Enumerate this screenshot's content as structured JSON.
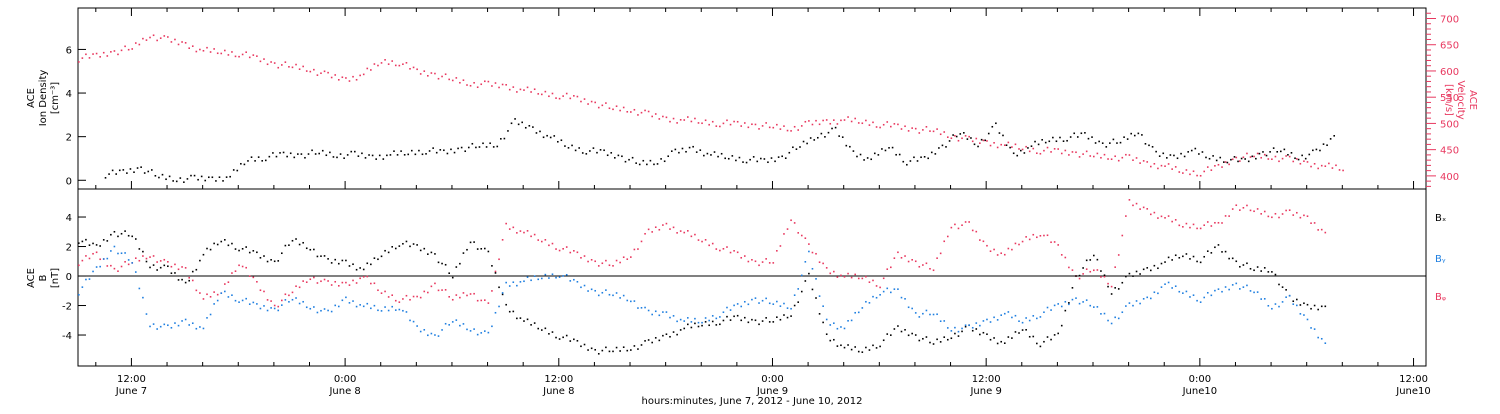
{
  "colors": {
    "density": "#000000",
    "velocity": "#e8385f",
    "bx": "#000000",
    "by": "#1f7fe0",
    "bz": "#e8385f",
    "axis": "#000000"
  },
  "chart_data": [
    {
      "type": "scatter",
      "panel": "top",
      "x_range_hours": [
        -3,
        72.7
      ],
      "bottom_title": "hours:minutes, June  7, 2012 - June 10, 2012",
      "x_ticks": [
        {
          "hour": 0,
          "time": "12:00",
          "day": "June 7"
        },
        {
          "hour": 12,
          "time": "0:00",
          "day": "June 8"
        },
        {
          "hour": 24,
          "time": "12:00",
          "day": "June 8"
        },
        {
          "hour": 36,
          "time": "0:00",
          "day": "June 9"
        },
        {
          "hour": 48,
          "time": "12:00",
          "day": "June 9"
        },
        {
          "hour": 60,
          "time": "0:00",
          "day": "June10"
        },
        {
          "hour": 72,
          "time": "12:00",
          "day": "June10"
        }
      ],
      "left_axis": {
        "label_line1": "ACE",
        "label_line2": "Ion Density",
        "label_units": "[cm⁻³]",
        "ylim": [
          -0.4,
          7.9
        ],
        "ticks": [
          0,
          2,
          4,
          6
        ]
      },
      "right_axis": {
        "label_line1": "ACE",
        "label_line2": "Velocity",
        "label_units": "[km/s]",
        "ylim": [
          375,
          720
        ],
        "ticks": [
          400,
          450,
          500,
          550,
          600,
          650,
          700
        ]
      },
      "series": [
        {
          "key": "density",
          "axis": "left",
          "x": [
            -1.5,
            -0.5,
            0.5,
            1.5,
            2.5,
            3.5,
            4.5,
            5.5,
            6.5,
            7.5,
            8.5,
            9.5,
            10.5,
            11.5,
            12.5,
            13.5,
            14.5,
            15.5,
            16.5,
            17.5,
            18.5,
            19.5,
            20.5,
            21.5,
            22.5,
            23.5,
            24.5,
            25.5,
            26.5,
            27.5,
            28.5,
            29.5,
            30.5,
            31.5,
            32.5,
            33.5,
            34.5,
            35.5,
            36.5,
            37.5,
            38.5,
            39.5,
            40.5,
            41.5,
            42.5,
            43.5,
            44.5,
            45.5,
            46.5,
            47.5,
            48.5,
            49.5,
            50.5,
            51.5,
            52.5,
            53.5,
            54.5,
            55.5,
            56.5,
            57.5,
            58.5,
            59.5,
            60.5,
            61.5,
            62.5,
            63.5,
            64.5,
            65.5,
            66.5,
            67.5
          ],
          "y": [
            0.3,
            0.4,
            0.6,
            0.2,
            0.1,
            0.1,
            0.1,
            0.2,
            1.0,
            1.1,
            1.2,
            1.2,
            1.3,
            1.2,
            1.2,
            1.1,
            1.2,
            1.3,
            1.4,
            1.3,
            1.5,
            1.6,
            1.7,
            2.7,
            2.4,
            2.0,
            1.6,
            1.4,
            1.3,
            1.1,
            0.8,
            0.9,
            1.3,
            1.5,
            1.2,
            1.1,
            1.0,
            0.9,
            1.1,
            1.6,
            2.1,
            2.3,
            1.3,
            1.0,
            1.6,
            0.9,
            1.0,
            1.6,
            2.2,
            1.7,
            2.5,
            1.2,
            1.6,
            1.9,
            2.0,
            2.1,
            1.7,
            1.8,
            2.3,
            1.2,
            1.1,
            1.4,
            1.1,
            1.0,
            0.9,
            1.3,
            1.4,
            1.1,
            1.3,
            2.0
          ]
        },
        {
          "key": "velocity",
          "axis": "right",
          "x": [
            -3,
            -2,
            -1,
            0,
            1,
            2,
            3,
            4,
            5,
            6,
            7,
            8,
            9,
            10,
            11,
            12,
            13,
            14,
            15,
            16,
            17,
            18,
            19,
            20,
            21,
            22,
            23,
            24,
            25,
            26,
            27,
            28,
            29,
            30,
            31,
            32,
            33,
            34,
            35,
            36,
            37,
            38,
            39,
            40,
            41,
            42,
            43,
            44,
            45,
            46,
            47,
            48,
            49,
            50,
            51,
            52,
            53,
            54,
            55,
            56,
            57,
            58,
            59,
            60,
            61,
            62,
            63,
            64,
            65,
            66,
            67,
            68
          ],
          "y": [
            625,
            630,
            638,
            645,
            670,
            660,
            652,
            640,
            638,
            635,
            625,
            615,
            610,
            605,
            592,
            585,
            595,
            620,
            618,
            600,
            595,
            585,
            578,
            575,
            572,
            565,
            560,
            555,
            548,
            540,
            530,
            528,
            518,
            510,
            508,
            505,
            502,
            500,
            498,
            495,
            492,
            500,
            505,
            508,
            505,
            500,
            495,
            490,
            488,
            478,
            470,
            465,
            460,
            455,
            450,
            448,
            445,
            440,
            438,
            435,
            425,
            420,
            410,
            408,
            418,
            435,
            440,
            438,
            432,
            425,
            420,
            415
          ]
        }
      ]
    },
    {
      "type": "scatter",
      "panel": "bottom",
      "left_axis": {
        "label_line1": "ACE",
        "label_line2": "B",
        "label_units": "[nT]",
        "ylim": [
          -6.1,
          5.9
        ],
        "ticks": [
          -4,
          -2,
          0,
          2,
          4
        ]
      },
      "legend": [
        "Bₓ",
        "Bᵧ",
        "Bᵩ"
      ],
      "series": [
        {
          "key": "bx",
          "name": "Bₓ",
          "x": [
            -3,
            -2,
            -1,
            0,
            1,
            2,
            3,
            4,
            5,
            6,
            7,
            8,
            9,
            10,
            11,
            12,
            13,
            14,
            15,
            16,
            17,
            18,
            19,
            20,
            21,
            22,
            23,
            24,
            25,
            26,
            27,
            28,
            29,
            30,
            31,
            32,
            33,
            34,
            35,
            36,
            37,
            38,
            39,
            40,
            41,
            42,
            43,
            44,
            45,
            46,
            47,
            48,
            49,
            50,
            51,
            52,
            53,
            54,
            55,
            56,
            57,
            58,
            59,
            60,
            61,
            62,
            63,
            64,
            65,
            66,
            67
          ],
          "y": [
            2.5,
            2.0,
            3.0,
            2.8,
            0.8,
            0.5,
            -0.5,
            1.5,
            2.5,
            2.0,
            1.5,
            1.0,
            2.5,
            2.0,
            1.0,
            1.0,
            0.5,
            1.5,
            2.3,
            2.0,
            1.5,
            0.0,
            2.5,
            1.5,
            -2.0,
            -3.0,
            -3.5,
            -4.0,
            -4.5,
            -5.0,
            -5.0,
            -4.8,
            -4.5,
            -4.0,
            -3.5,
            -3.2,
            -3.0,
            -2.8,
            -3.0,
            -3.0,
            -2.5,
            0.0,
            -4.0,
            -4.8,
            -5.0,
            -4.5,
            -3.5,
            -4.0,
            -4.5,
            -4.0,
            -3.5,
            -4.0,
            -4.5,
            -3.5,
            -4.5,
            -4.0,
            0.0,
            1.5,
            -1.0,
            0.0,
            0.5,
            1.0,
            1.5,
            1.2,
            2.0,
            1.0,
            0.5,
            0.5,
            -1.5,
            -2.0,
            -2.0
          ]
        },
        {
          "key": "by",
          "name": "Bᵧ",
          "x": [
            -3,
            -2,
            -1,
            0,
            1,
            2,
            3,
            4,
            5,
            6,
            7,
            8,
            9,
            10,
            11,
            12,
            13,
            14,
            15,
            16,
            17,
            18,
            19,
            20,
            21,
            22,
            23,
            24,
            25,
            26,
            27,
            28,
            29,
            30,
            31,
            32,
            33,
            34,
            35,
            36,
            37,
            38,
            39,
            40,
            41,
            42,
            43,
            44,
            45,
            46,
            47,
            48,
            49,
            50,
            51,
            52,
            53,
            54,
            55,
            56,
            57,
            58,
            59,
            60,
            61,
            62,
            63,
            64,
            65,
            66,
            67
          ],
          "y": [
            -1.0,
            0.5,
            2.0,
            1.0,
            -3.2,
            -3.5,
            -3.0,
            -3.5,
            -1.0,
            -1.5,
            -2.0,
            -2.2,
            -1.5,
            -2.0,
            -2.5,
            -1.5,
            -2.0,
            -2.2,
            -2.0,
            -3.5,
            -4.0,
            -3.0,
            -3.5,
            -4.0,
            -0.5,
            -0.3,
            0.0,
            0.2,
            -0.5,
            -1.0,
            -1.2,
            -1.5,
            -2.5,
            -2.5,
            -3.0,
            -3.0,
            -2.5,
            -2.0,
            -1.5,
            -1.8,
            -2.0,
            1.5,
            -3.0,
            -3.5,
            -2.0,
            -1.0,
            -1.0,
            -2.5,
            -2.5,
            -3.5,
            -3.5,
            -3.0,
            -2.5,
            -3.0,
            -2.5,
            -2.0,
            -1.5,
            -2.0,
            -3.0,
            -2.0,
            -1.5,
            -0.5,
            -1.0,
            -1.5,
            -1.0,
            -0.5,
            -1.0,
            -2.0,
            -1.5,
            -3.0,
            -4.5
          ]
        },
        {
          "key": "bz",
          "name": "Bᵩ",
          "x": [
            -3,
            -2,
            -1,
            0,
            1,
            2,
            3,
            4,
            5,
            6,
            7,
            8,
            9,
            10,
            11,
            12,
            13,
            14,
            15,
            16,
            17,
            18,
            19,
            20,
            21,
            22,
            23,
            24,
            25,
            26,
            27,
            28,
            29,
            30,
            31,
            32,
            33,
            34,
            35,
            36,
            37,
            38,
            39,
            40,
            41,
            42,
            43,
            44,
            45,
            46,
            47,
            48,
            49,
            50,
            51,
            52,
            53,
            54,
            55,
            56,
            57,
            58,
            59,
            60,
            61,
            62,
            63,
            64,
            65,
            66,
            67
          ],
          "y": [
            1.0,
            1.5,
            0.5,
            1.0,
            1.5,
            0.8,
            0.5,
            -1.5,
            -1.0,
            1.0,
            -0.5,
            -2.0,
            -1.0,
            0.0,
            -0.5,
            -0.5,
            0.0,
            -1.0,
            -1.5,
            -1.5,
            -0.5,
            -1.5,
            -1.0,
            -2.0,
            3.5,
            3.0,
            2.5,
            2.0,
            1.5,
            1.0,
            0.8,
            1.5,
            3.0,
            3.5,
            3.0,
            2.5,
            2.0,
            1.5,
            1.0,
            1.0,
            4.0,
            2.0,
            0.5,
            0.0,
            0.0,
            -0.5,
            1.5,
            1.0,
            0.5,
            3.5,
            3.5,
            2.0,
            1.5,
            2.5,
            3.0,
            2.0,
            0.0,
            0.5,
            -0.5,
            5.0,
            4.5,
            4.0,
            3.5,
            3.5,
            3.5,
            4.8,
            4.5,
            4.2,
            4.3,
            4.0,
            3.0
          ]
        }
      ]
    }
  ]
}
